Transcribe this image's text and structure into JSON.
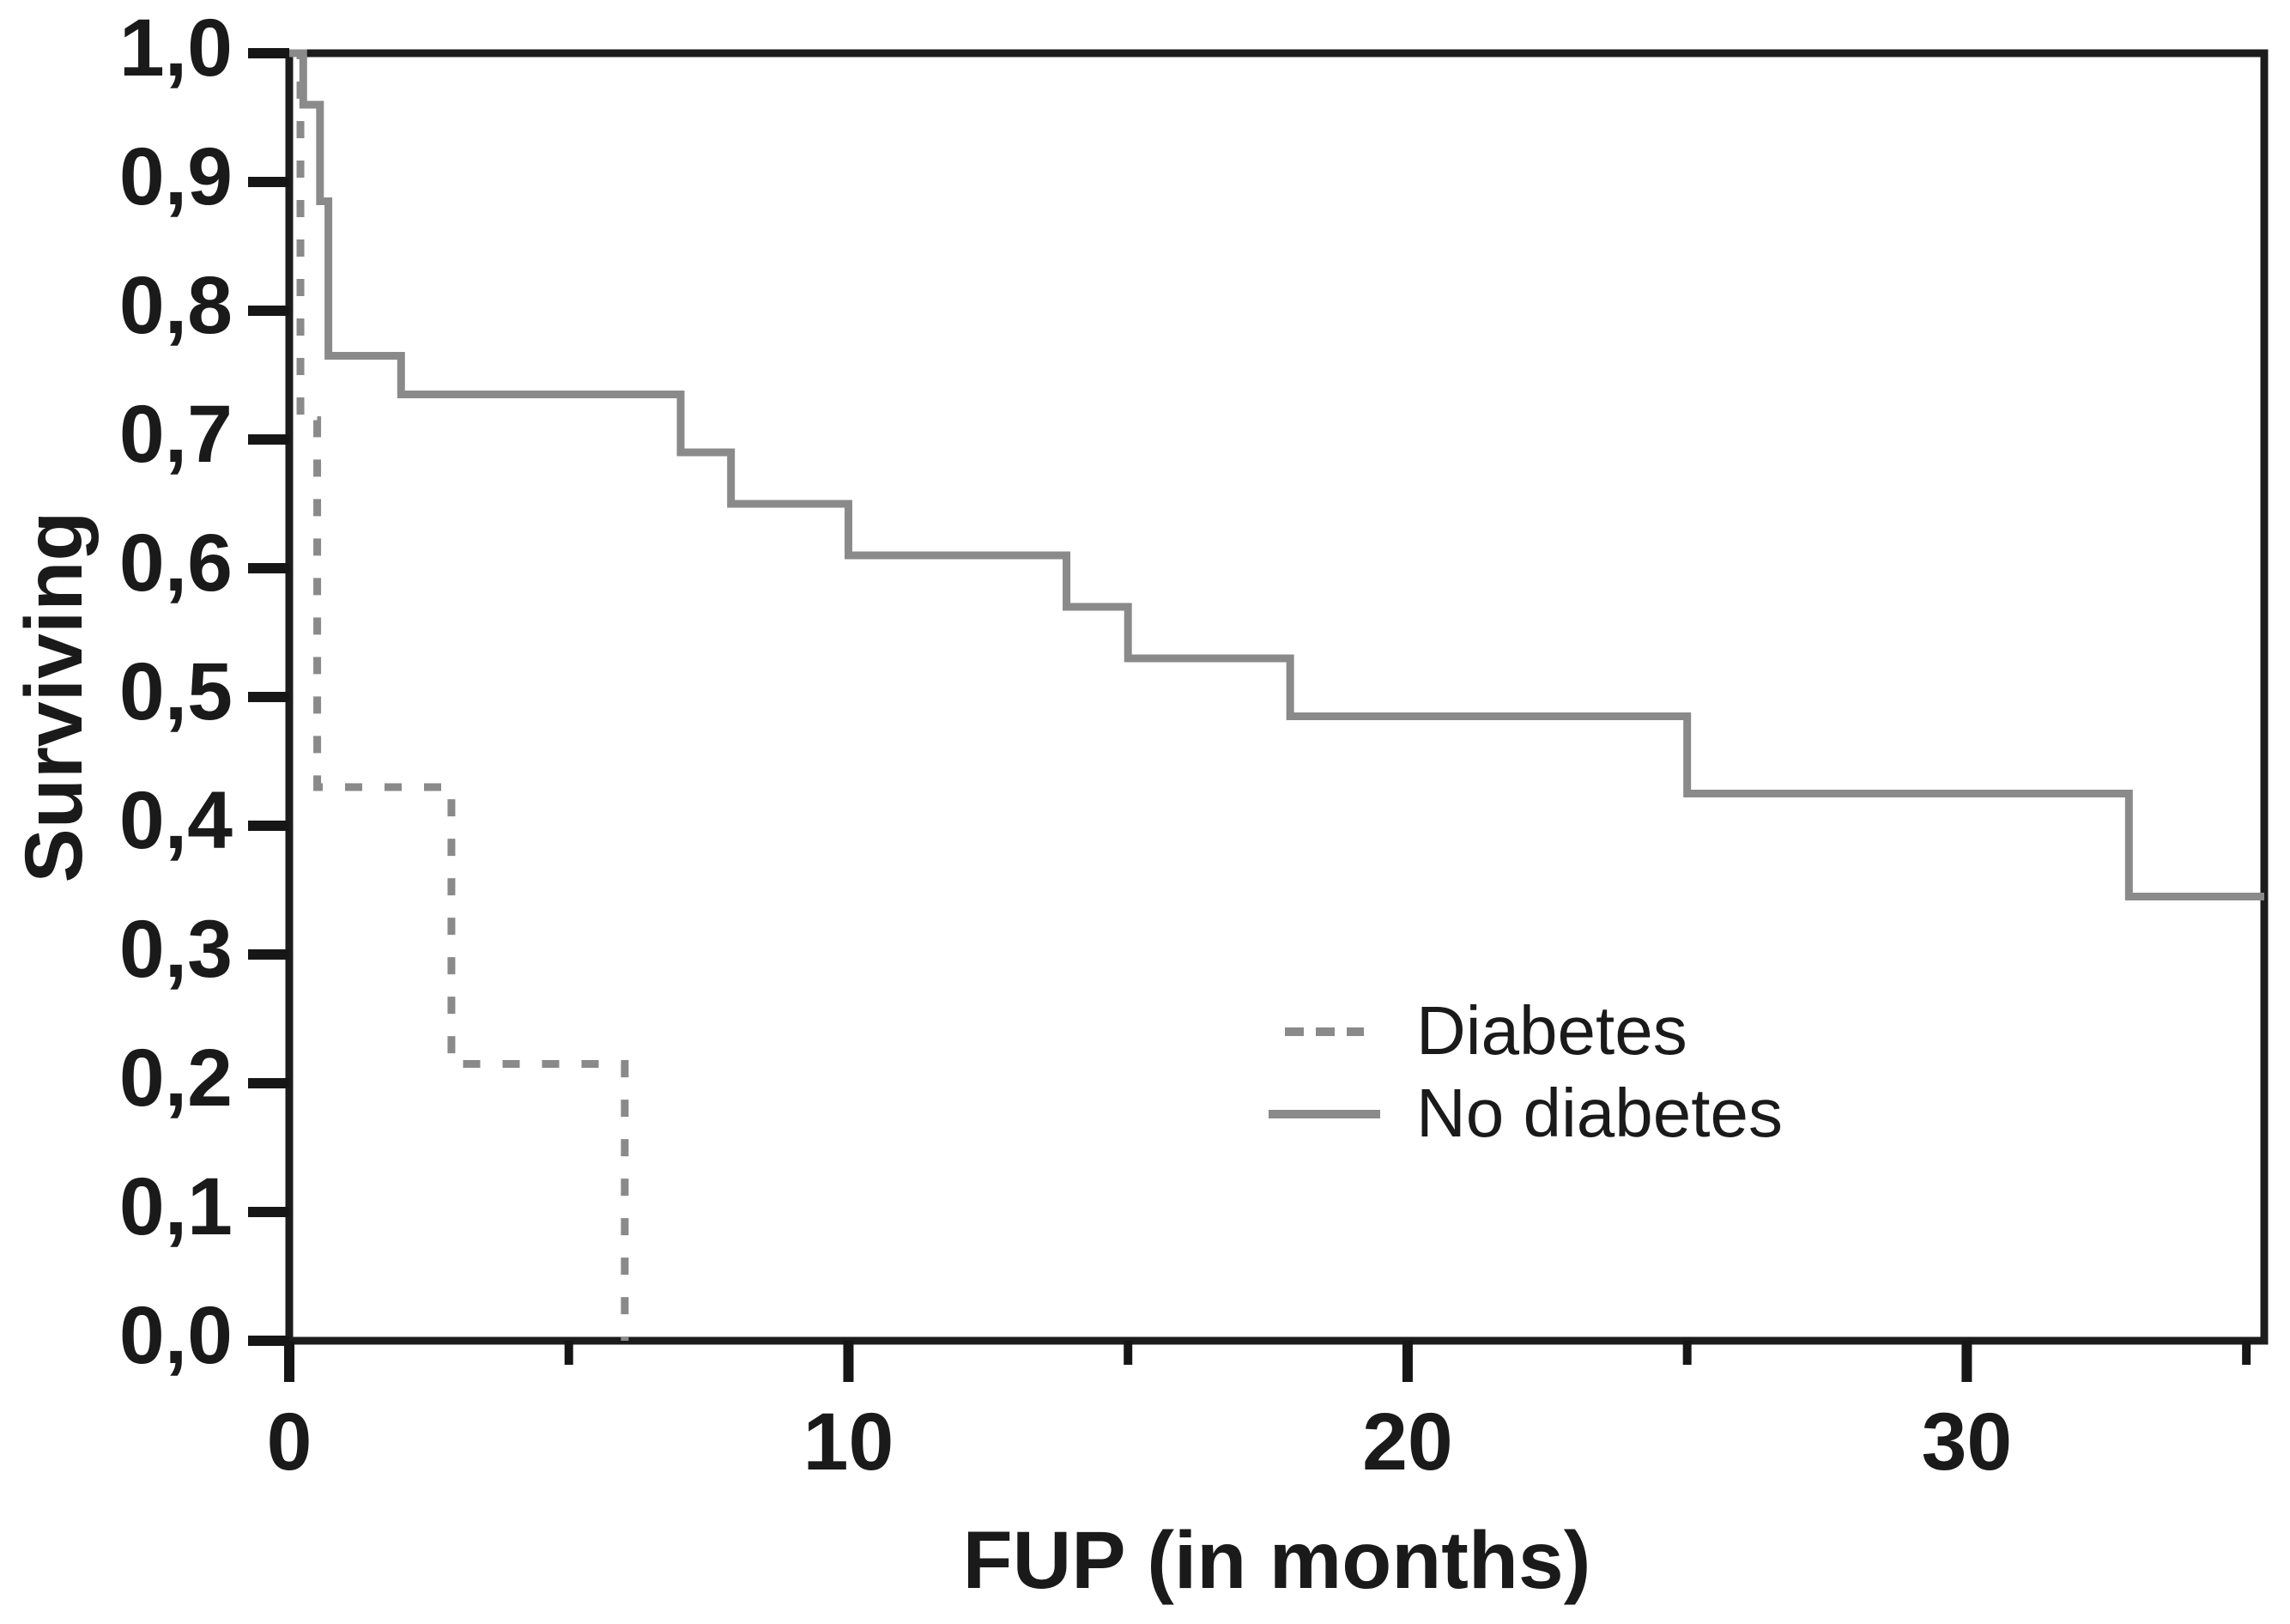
{
  "figure": {
    "background_color": "#ffffff",
    "axis_color": "#1c1c1c",
    "tick_color": "#161616",
    "text_color": "#1a1a1a",
    "curve_color": "#8a8a8a"
  },
  "chart_data": {
    "type": "line",
    "subtype": "kaplan-meier-step",
    "title": "",
    "xlabel": "FUP (in months)",
    "ylabel": "Surviving",
    "xlim": [
      0,
      35.32
    ],
    "ylim": [
      0.0,
      1.0
    ],
    "grid": false,
    "legend_position": "inside-right-middle",
    "x_major_ticks": [
      {
        "value": 0,
        "label": "0"
      },
      {
        "value": 10,
        "label": "10"
      },
      {
        "value": 20,
        "label": "20"
      },
      {
        "value": 30,
        "label": "30"
      }
    ],
    "x_minor_ticks": [
      5,
      15,
      25,
      35
    ],
    "y_ticks": [
      {
        "value": 1.0,
        "label": "1,0"
      },
      {
        "value": 0.9,
        "label": "0,9"
      },
      {
        "value": 0.8,
        "label": "0,8"
      },
      {
        "value": 0.7,
        "label": "0,7"
      },
      {
        "value": 0.6,
        "label": "0,6"
      },
      {
        "value": 0.5,
        "label": "0,5"
      },
      {
        "value": 0.4,
        "label": "0,4"
      },
      {
        "value": 0.3,
        "label": "0,3"
      },
      {
        "value": 0.2,
        "label": "0,2"
      },
      {
        "value": 0.1,
        "label": "0,1"
      },
      {
        "value": 0.0,
        "label": "0,0"
      }
    ],
    "series": [
      {
        "name": "Diabetes",
        "line_style": "dashed",
        "color": "#8a8a8a",
        "step_points": [
          [
            0,
            1.0
          ],
          [
            0.2,
            0.715
          ],
          [
            0.5,
            0.43
          ],
          [
            2.9,
            0.215
          ],
          [
            6,
            0.0
          ]
        ],
        "end_x": 6
      },
      {
        "name": "No diabetes",
        "line_style": "solid",
        "color": "#8a8a8a",
        "step_points": [
          [
            0,
            1.0
          ],
          [
            0.25,
            0.96
          ],
          [
            0.55,
            0.885
          ],
          [
            0.7,
            0.765
          ],
          [
            2.0,
            0.735
          ],
          [
            7.0,
            0.69
          ],
          [
            7.9,
            0.65
          ],
          [
            10.0,
            0.61
          ],
          [
            13.9,
            0.57
          ],
          [
            15.0,
            0.53
          ],
          [
            17.9,
            0.485
          ],
          [
            25.0,
            0.425
          ],
          [
            32.9,
            0.345
          ]
        ],
        "end_x": 35.32
      }
    ],
    "legend": {
      "items": [
        {
          "label": "Diabetes",
          "line_style": "dashed"
        },
        {
          "label": "No diabetes",
          "line_style": "solid"
        }
      ]
    }
  }
}
